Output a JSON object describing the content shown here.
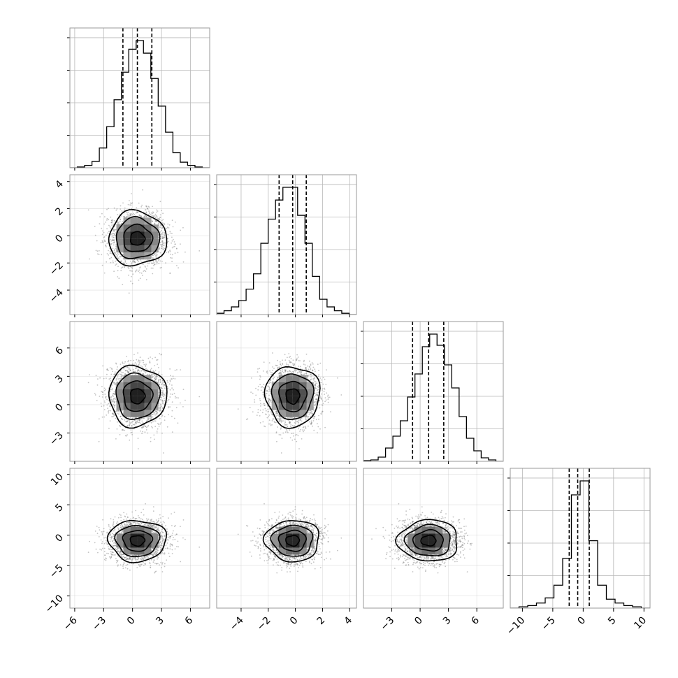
{
  "chart_data": {
    "type": "corner",
    "parameters": [
      {
        "index": 0,
        "range": [
          -6.5,
          8.0
        ],
        "ticks": [
          -6,
          -3,
          0,
          3,
          6
        ],
        "tick_labels": [
          "−6",
          "−3",
          "0",
          "3",
          "6"
        ],
        "quantiles": [
          -1.0,
          0.5,
          2.0
        ],
        "mean": 0.5,
        "sigma": 1.5,
        "hist": [
          0,
          1,
          3,
          8,
          25,
          52,
          86,
          121,
          150,
          161,
          145,
          113,
          78,
          45,
          19,
          7,
          3,
          1,
          0
        ]
      },
      {
        "index": 1,
        "range": [
          -5.8,
          4.5
        ],
        "ticks": [
          -4,
          -2,
          0,
          2,
          4
        ],
        "tick_labels": [
          "−4",
          "−2",
          "0",
          "2",
          "4"
        ],
        "quantiles": [
          -1.2,
          -0.2,
          0.8
        ],
        "mean": -0.2,
        "sigma": 1.0,
        "hist": [
          1,
          3,
          6,
          11,
          20,
          32,
          56,
          75,
          90,
          100,
          100,
          78,
          56,
          30,
          12,
          6,
          3,
          1,
          0
        ]
      },
      {
        "index": 2,
        "range": [
          -6.0,
          8.8
        ],
        "ticks": [
          -3,
          0,
          3,
          6
        ],
        "tick_labels": [
          "−3",
          "0",
          "3",
          "6"
        ],
        "quantiles": [
          -0.8,
          0.9,
          2.5
        ],
        "mean": 0.9,
        "sigma": 1.6,
        "hist": [
          1,
          2,
          6,
          19,
          36,
          58,
          92,
          125,
          164,
          182,
          166,
          138,
          105,
          64,
          33,
          15,
          5,
          2,
          0
        ]
      },
      {
        "index": 3,
        "range": [
          -12.0,
          11.0
        ],
        "ticks": [
          -10,
          -5,
          0,
          5,
          10
        ],
        "tick_labels": [
          "−10",
          "−5",
          "0",
          "5",
          "10"
        ],
        "quantiles": [
          -2.3,
          -0.9,
          1.0
        ],
        "mean": -0.9,
        "sigma": 1.7,
        "hist": [
          0,
          1,
          2,
          4,
          8,
          18,
          39,
          89,
          100,
          53,
          18,
          7,
          4,
          2,
          1,
          0
        ]
      }
    ],
    "scatter_samples": 2200,
    "contour_levels": 4,
    "grid": true,
    "title": "",
    "legend": "none"
  }
}
